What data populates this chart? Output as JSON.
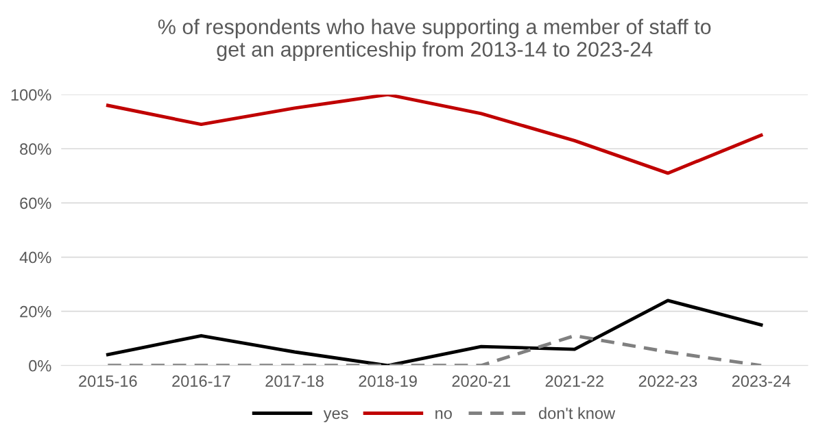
{
  "chart_data": {
    "type": "line",
    "title": "% of respondents who have supporting a member of staff to\nget an apprenticeship from 2013-14 to 2023-24",
    "categories": [
      "2015-16",
      "2016-17",
      "2017-18",
      "2018-19",
      "2020-21",
      "2021-22",
      "2022-23",
      "2023-24"
    ],
    "series": [
      {
        "name": "yes",
        "color": "#000000",
        "values": [
          4,
          11,
          5,
          0,
          7,
          6,
          24,
          15
        ]
      },
      {
        "name": "no",
        "color": "#c00000",
        "values": [
          96,
          89,
          95,
          100,
          93,
          83,
          71,
          85
        ]
      },
      {
        "name": "don't know",
        "color": "#808080",
        "line_style": "dashed",
        "values": [
          0,
          0,
          0,
          0,
          0,
          11,
          5,
          0
        ]
      }
    ],
    "ylim": [
      0,
      100
    ],
    "yticks": [
      {
        "value": 0,
        "label": "0%"
      },
      {
        "value": 20,
        "label": "20%"
      },
      {
        "value": 40,
        "label": "40%"
      },
      {
        "value": 60,
        "label": "60%"
      },
      {
        "value": 80,
        "label": "80%"
      },
      {
        "value": 100,
        "label": "100%"
      }
    ],
    "grid": "y",
    "legend": "bottom",
    "marker": "none",
    "line_style": "solid"
  }
}
